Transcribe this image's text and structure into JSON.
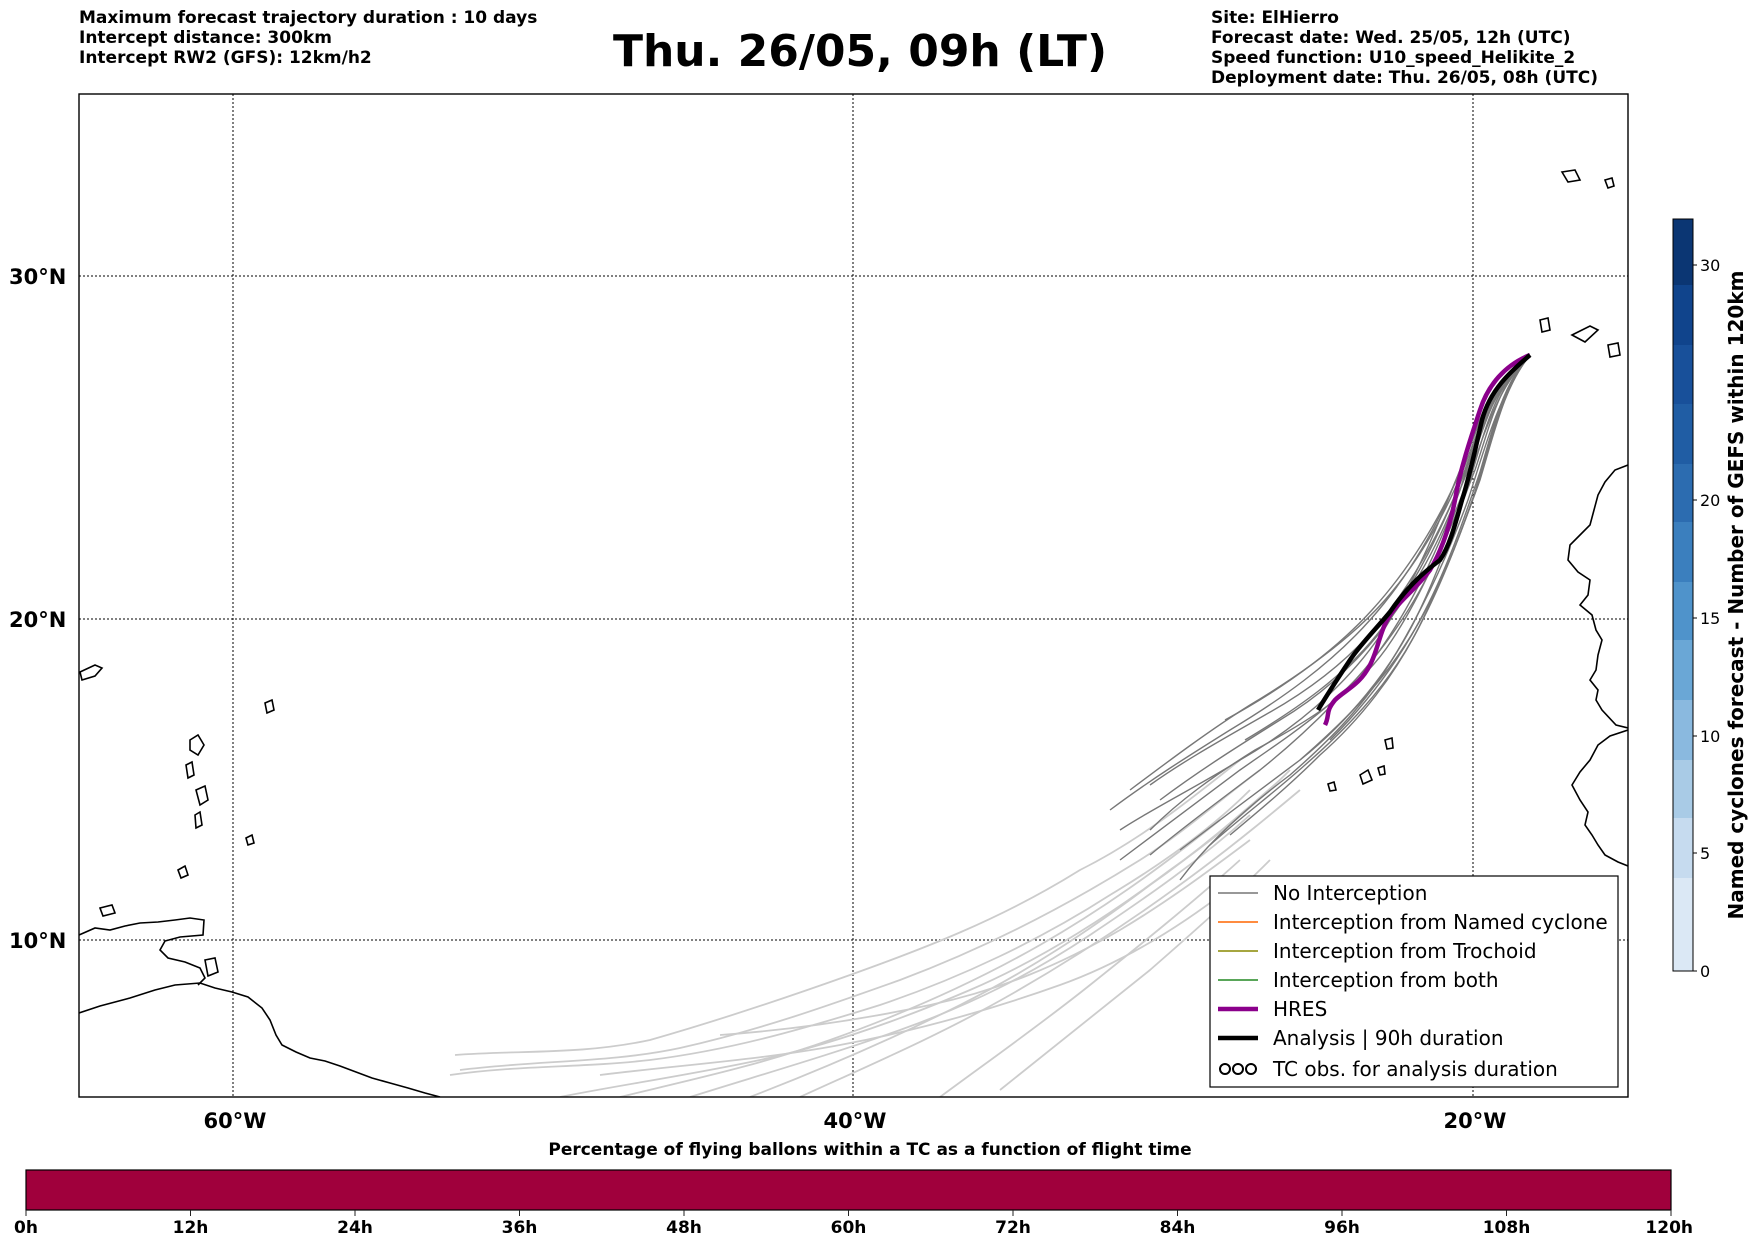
{
  "header": {
    "left_lines": [
      "Maximum forecast trajectory duration : 10 days",
      "Intercept distance: 300km",
      "Intercept RW2 (GFS):  12km/h2"
    ],
    "title": "Thu. 26/05, 09h (LT)",
    "right_lines": [
      "Site: ElHierro",
      "Forecast date: Wed. 25/05, 12h (UTC)",
      "Speed function: U10_speed_Helikite_2",
      "Deployment date: Thu. 26/05, 08h (UTC)"
    ]
  },
  "map": {
    "lat_labels": [
      "30°N",
      "20°N",
      "10°N"
    ],
    "lon_labels": [
      "60°W",
      "40°W",
      "20°W"
    ],
    "lat_range": [
      5.5,
      34.8
    ],
    "lon_range": [
      -65,
      -15
    ],
    "colors": {
      "no_interception": "#777777",
      "early_tracks": "#cccccc",
      "named_cyclone": "#ff6600",
      "trochoid": "#888800",
      "both": "#228822",
      "hres": "#8b008b",
      "analysis": "#000000",
      "coast": "#000000"
    }
  },
  "legend": {
    "items": [
      {
        "label": "No Interception",
        "style": "no_interception"
      },
      {
        "label": "Interception from Named cyclone",
        "style": "named_cyclone"
      },
      {
        "label": "Interception from Trochoid",
        "style": "trochoid"
      },
      {
        "label": "Interception from both",
        "style": "both"
      },
      {
        "label": "HRES",
        "style": "hres"
      },
      {
        "label": "Analysis | 90h duration",
        "style": "analysis"
      },
      {
        "label": "TC obs. for analysis duration",
        "style": "tc_symbol"
      }
    ]
  },
  "colorbar": {
    "label": "Named cyclones forecast - Number of GEFS within 120km",
    "ticks": [
      "0",
      "5",
      "10",
      "15",
      "20",
      "30"
    ],
    "range": [
      0,
      33
    ]
  },
  "percentage_bar": {
    "title": "Percentage of flying ballons within a TC as a function of flight time",
    "ticks": [
      "0h",
      "12h",
      "24h",
      "36h",
      "48h",
      "60h",
      "72h",
      "84h",
      "96h",
      "108h",
      "120h"
    ],
    "fill_color": "#a0003c"
  }
}
